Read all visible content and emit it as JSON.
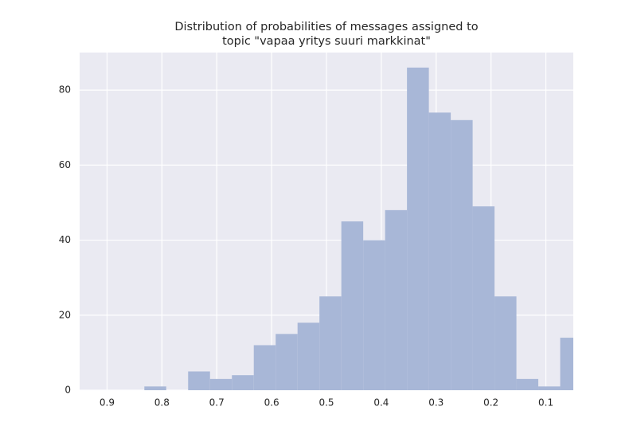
{
  "chart_data": {
    "type": "histogram",
    "title": [
      "Distribution of probabilities of messages assigned to",
      "topic \"vapaa yritys suuri markkinat\""
    ],
    "bins": [
      0.034,
      0.0739,
      0.1138,
      0.1537,
      0.1936,
      0.2335,
      0.2734,
      0.3133,
      0.3532,
      0.3931,
      0.433,
      0.4729,
      0.5128,
      0.5527,
      0.5926,
      0.6325,
      0.6724,
      0.7123,
      0.7522,
      0.7921,
      0.832
    ],
    "values": [
      14,
      1,
      3,
      25,
      49,
      72,
      74,
      86,
      48,
      40,
      45,
      25,
      18,
      15,
      12,
      4,
      3,
      5,
      0,
      1
    ],
    "color": "#a8b7d7",
    "xlim": [
      0.95,
      0.05
    ],
    "xticks": [
      0.9,
      0.8,
      0.7,
      0.6,
      0.5,
      0.4,
      0.3,
      0.2,
      0.1
    ],
    "ylim": [
      0,
      90
    ],
    "yticks": [
      0,
      20,
      40,
      60,
      80
    ],
    "grid": true
  }
}
